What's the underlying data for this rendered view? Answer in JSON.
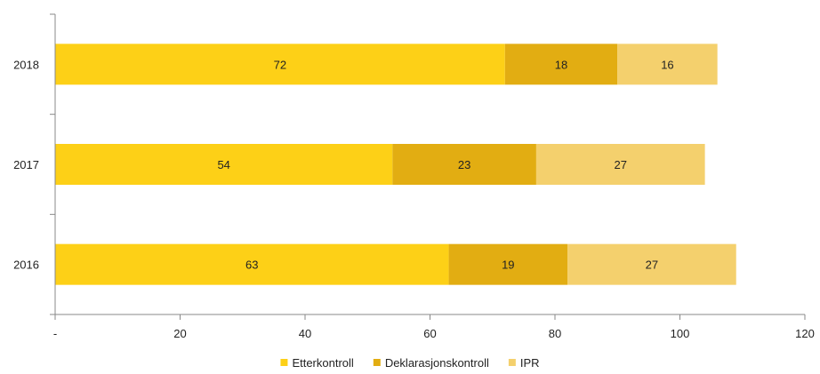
{
  "chart_data": {
    "type": "bar",
    "orientation": "horizontal",
    "stacked": true,
    "title": "",
    "xlabel": "",
    "ylabel": "",
    "categories": [
      "2018",
      "2017",
      "2016"
    ],
    "series": [
      {
        "name": "Etterkontroll",
        "color": "#FDD017",
        "values": [
          72,
          54,
          63
        ]
      },
      {
        "name": "Deklarasjonskontroll",
        "color": "#E2AD12",
        "values": [
          18,
          23,
          19
        ]
      },
      {
        "name": "IPR",
        "color": "#F4D06D",
        "values": [
          16,
          27,
          27
        ]
      }
    ],
    "xlim": [
      0,
      120
    ],
    "xticks": [
      0,
      20,
      40,
      60,
      80,
      100,
      120
    ],
    "xtick_labels": [
      "-",
      "20",
      "40",
      "60",
      "80",
      "100",
      "120"
    ],
    "grid": false,
    "legend_position": "bottom-center"
  }
}
